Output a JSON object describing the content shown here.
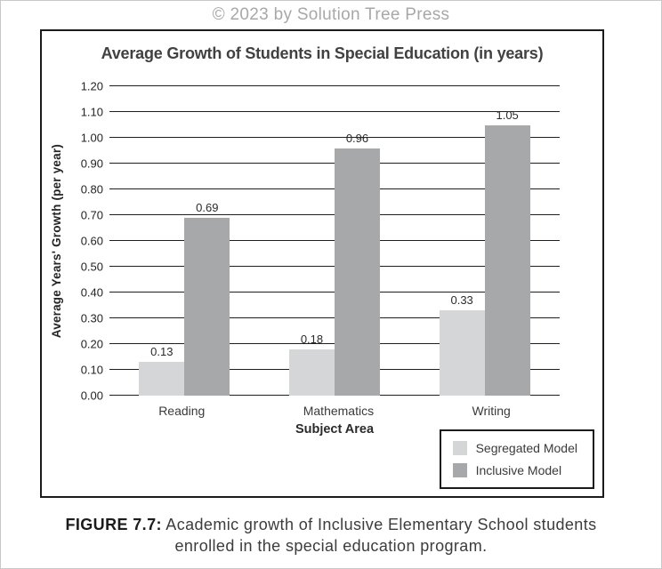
{
  "page": {
    "copyright": "© 2023 by Solution Tree Press",
    "caption_label": "FIGURE 7.7:",
    "caption_text": " Academic growth of Inclusive Elementary School students enrolled in the special education program."
  },
  "chart_data": {
    "type": "bar",
    "title": "Average Growth of Students in Special Education (in years)",
    "xlabel": "Subject Area",
    "ylabel": "Average Years' Growth (per year)",
    "categories": [
      "Reading",
      "Mathematics",
      "Writing"
    ],
    "series": [
      {
        "name": "Segregated Model",
        "color": "#d5d6d8",
        "values": [
          0.13,
          0.18,
          0.33
        ]
      },
      {
        "name": "Inclusive Model",
        "color": "#a6a8aa",
        "values": [
          0.69,
          0.96,
          1.05
        ]
      }
    ],
    "ylim": [
      0,
      1.2
    ],
    "y_ticks": [
      0.0,
      0.1,
      0.2,
      0.3,
      0.4,
      0.5,
      0.6,
      0.7,
      0.8,
      0.9,
      1.0,
      1.1,
      1.2
    ],
    "grid": true,
    "data_labels": true,
    "legend_position": "bottom-right",
    "colors": {
      "gridline": "#1f1f1f",
      "chart_border": "#1b1b1b",
      "title_text": "#414141",
      "copyright_text": "#a8a8a8"
    }
  }
}
